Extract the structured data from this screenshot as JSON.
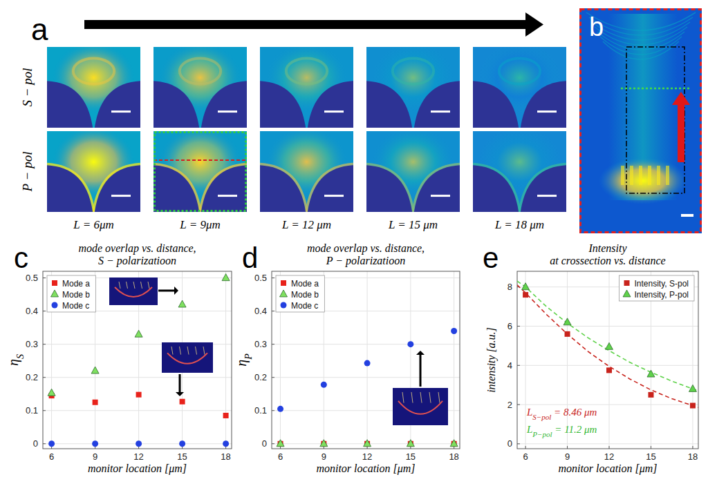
{
  "panel_a": {
    "letter": "a",
    "rows": [
      "S − pol",
      "P − pol"
    ],
    "columns": [
      "L = 6μm",
      "L = 9μm",
      "L = 12 μm",
      "L = 15 μm",
      "L = 18 μm"
    ]
  },
  "panel_b": {
    "letter": "b"
  },
  "chart_data": [
    {
      "type": "scatter",
      "panel_label": "c",
      "title": "mode overlap vs. distance,\nS − polarizatioon",
      "x_label": "monitor location [μm]",
      "y_label": {
        "symbol": "η",
        "subscript": "S"
      },
      "x": [
        6,
        9,
        12,
        15,
        18
      ],
      "xlim": [
        5.4,
        18.4
      ],
      "xticks": [
        6,
        9,
        12,
        15,
        18
      ],
      "ylim": [
        -0.015,
        0.52
      ],
      "yticks": [
        0,
        0.1,
        0.2,
        0.3,
        0.4,
        0.5
      ],
      "grid": true,
      "legend": "top-left",
      "series": [
        {
          "name": "Mode a",
          "color": "#e8221b",
          "marker": "square",
          "values": [
            0.145,
            0.125,
            0.148,
            0.127,
            0.085
          ]
        },
        {
          "name": "Mode b",
          "color": "#7fe060",
          "marker": "triangle",
          "values": [
            0.153,
            0.22,
            0.33,
            0.42,
            0.5
          ]
        },
        {
          "name": "Mode c",
          "color": "#2340e0",
          "marker": "circle",
          "values": [
            0,
            0,
            0,
            0,
            0
          ]
        }
      ]
    },
    {
      "type": "scatter",
      "panel_label": "d",
      "title": "mode overlap vs. distance,\nP − polarizatioon",
      "x_label": "monitor location [μm]",
      "y_label": {
        "symbol": "η",
        "subscript": "P"
      },
      "x": [
        6,
        9,
        12,
        15,
        18
      ],
      "xlim": [
        5.4,
        18.4
      ],
      "xticks": [
        6,
        9,
        12,
        15,
        18
      ],
      "ylim": [
        -0.015,
        0.52
      ],
      "yticks": [
        0,
        0.1,
        0.2,
        0.3,
        0.4,
        0.5
      ],
      "grid": true,
      "legend": "top-left",
      "series": [
        {
          "name": "Mode a",
          "color": "#e8221b",
          "marker": "square",
          "values": [
            0,
            0,
            0,
            0,
            0
          ]
        },
        {
          "name": "Mode b",
          "color": "#7fe060",
          "marker": "triangle",
          "values": [
            0,
            0,
            0,
            0,
            0
          ]
        },
        {
          "name": "Mode c",
          "color": "#2340e0",
          "marker": "circle",
          "values": [
            0.105,
            0.178,
            0.243,
            0.3,
            0.34
          ]
        }
      ]
    },
    {
      "type": "scatter",
      "panel_label": "e",
      "title": "Intensity\nat crossection vs. distance",
      "x_label": "monitor location [μm]",
      "y_label": "intensity [a.u.]",
      "x": [
        6,
        9,
        12,
        15,
        18
      ],
      "xlim": [
        5.4,
        18.4
      ],
      "xticks": [
        6,
        9,
        12,
        15,
        18
      ],
      "ylim": [
        -0.25,
        8.8
      ],
      "yticks": [
        0,
        2,
        4,
        6,
        8
      ],
      "grid": true,
      "legend": "top-right",
      "series": [
        {
          "name": "Intensity, S-pol",
          "color": "#c8231c",
          "marker": "square",
          "line_style": "dashed",
          "values": [
            7.6,
            5.6,
            3.75,
            2.5,
            1.95
          ],
          "fit": {
            "x": [
              5.4,
              6,
              7.5,
              9,
              10.5,
              12,
              13.5,
              15,
              16.5,
              18,
              18.4
            ],
            "values": [
              8.1,
              7.7,
              6.6,
              5.6,
              4.7,
              3.95,
              3.3,
              2.75,
              2.3,
              1.95,
              1.85
            ]
          }
        },
        {
          "name": "Intensity, P-pol",
          "color": "#5fd24a",
          "marker": "triangle",
          "line_style": "dashed",
          "values": [
            8.0,
            6.2,
            4.95,
            3.55,
            2.8
          ],
          "fit": {
            "x": [
              5.4,
              6,
              7.5,
              9,
              10.5,
              12,
              13.5,
              15,
              16.5,
              18,
              18.4
            ],
            "values": [
              8.3,
              8.0,
              7.0,
              6.15,
              5.4,
              4.75,
              4.15,
              3.65,
              3.2,
              2.8,
              2.7
            ]
          }
        }
      ],
      "annotations": [
        {
          "symbol": "L",
          "subscript": "S−pol",
          "text": " = 8.46 μm",
          "color": "#c8231c"
        },
        {
          "symbol": "L",
          "subscript": "P−pol",
          "text": " = 11.2 μm",
          "color": "#33b833"
        }
      ]
    }
  ]
}
